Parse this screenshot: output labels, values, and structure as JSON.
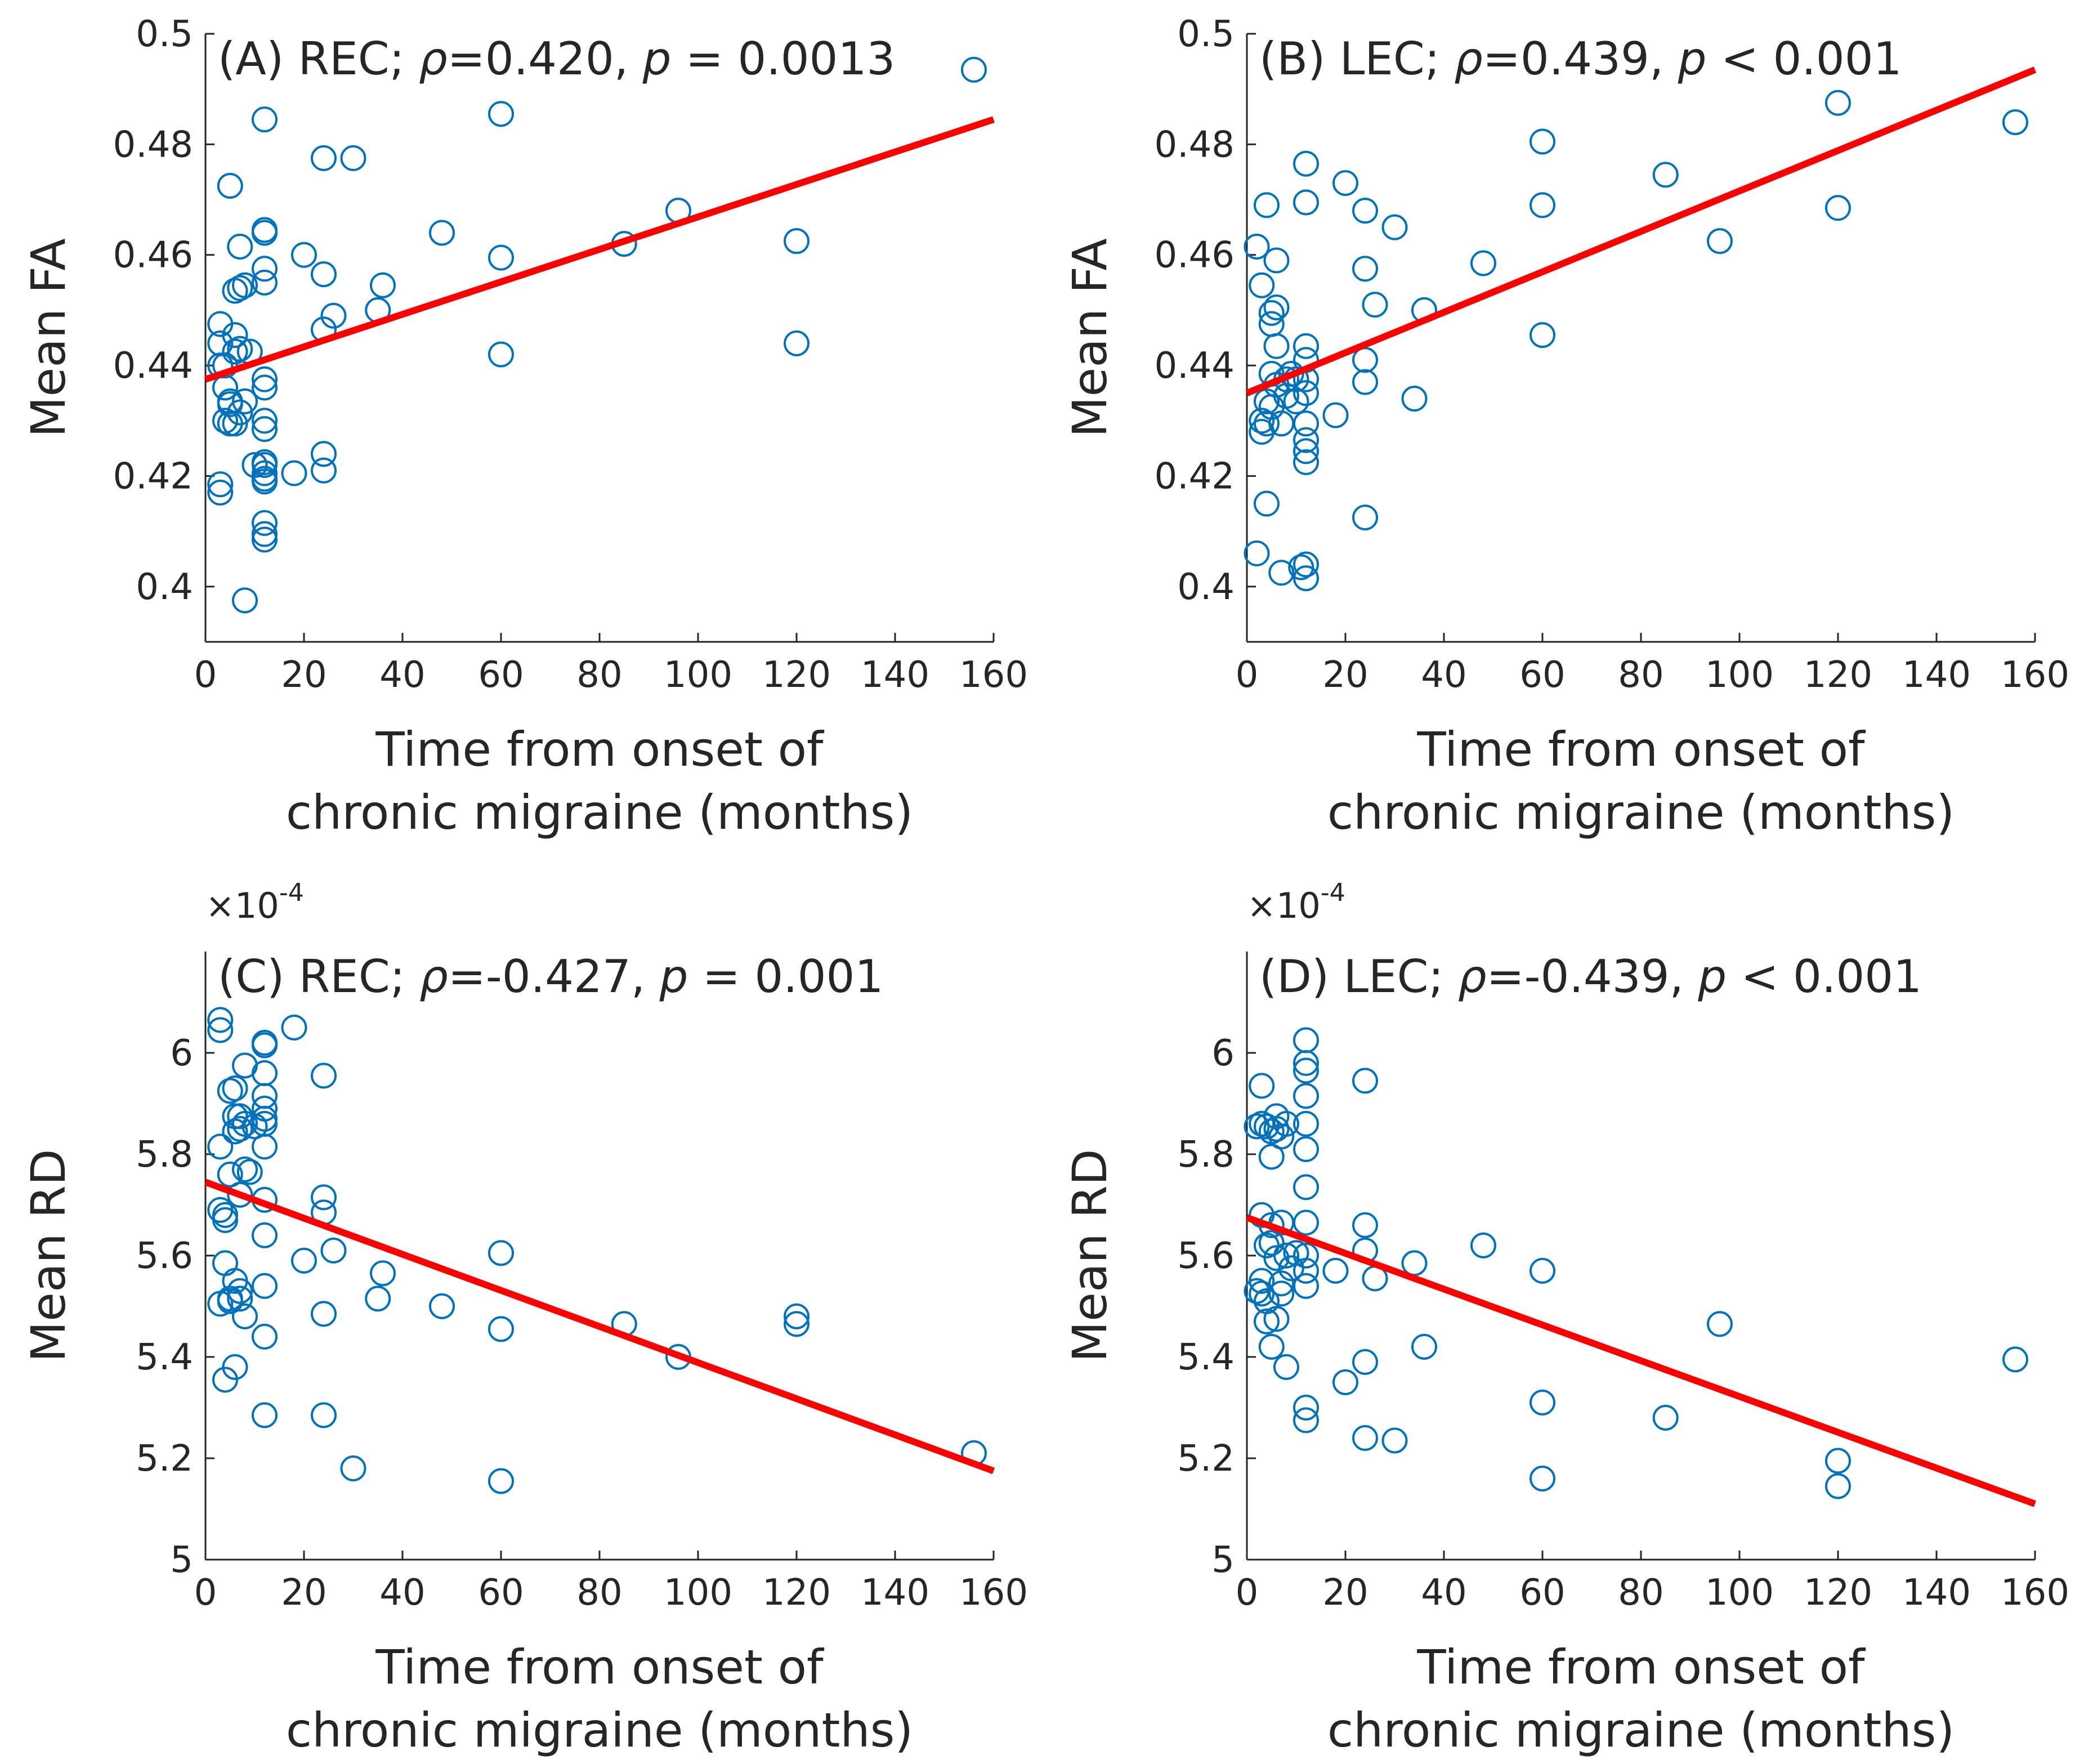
{
  "chart_data": [
    {
      "type": "scatter",
      "panel": "A",
      "title_parts": {
        "prefix": "(A) REC; ",
        "rho_symbol": "ρ",
        "rho_text": "=0.420, ",
        "p_symbol": "p",
        "p_text": " = 0.0013"
      },
      "xlabel": [
        "Time from onset of",
        "chronic migraine (months)"
      ],
      "ylabel": "Mean FA",
      "xlim": [
        0,
        160
      ],
      "ylim": [
        0.39,
        0.5
      ],
      "xticks": [
        0,
        20,
        40,
        60,
        80,
        100,
        120,
        140,
        160
      ],
      "yticks": [
        0.4,
        0.42,
        0.44,
        0.46,
        0.48,
        0.5
      ],
      "ytick_labels": [
        "0.4",
        "0.42",
        "0.44",
        "0.46",
        "0.48",
        "0.5"
      ],
      "exponent_label": "",
      "fit_line": {
        "x": [
          0,
          160
        ],
        "y": [
          0.4375,
          0.4845
        ]
      },
      "x": [
        3,
        3,
        3,
        3,
        3,
        4,
        4,
        4,
        5,
        5,
        5,
        5,
        6,
        6,
        6,
        6,
        7,
        7,
        7,
        7,
        8,
        8,
        8,
        9,
        10,
        12,
        12,
        12,
        12,
        12,
        12,
        12,
        12,
        12,
        12,
        12,
        12,
        12,
        12,
        12,
        12,
        12,
        18,
        20,
        24,
        24,
        24,
        24,
        24,
        26,
        30,
        35,
        36,
        48,
        60,
        60,
        60,
        85,
        96,
        120,
        120,
        156
      ],
      "y": [
        0.4475,
        0.444,
        0.44,
        0.4185,
        0.417,
        0.44,
        0.436,
        0.43,
        0.4725,
        0.4335,
        0.4295,
        0.433,
        0.4535,
        0.4455,
        0.4425,
        0.4295,
        0.4615,
        0.454,
        0.443,
        0.4315,
        0.4545,
        0.4335,
        0.3975,
        0.4425,
        0.422,
        0.4845,
        0.4645,
        0.464,
        0.4575,
        0.455,
        0.4375,
        0.436,
        0.43,
        0.4285,
        0.4225,
        0.419,
        0.4115,
        0.4095,
        0.4085,
        0.4205,
        0.4195,
        0.422,
        0.4205,
        0.46,
        0.4775,
        0.4565,
        0.4465,
        0.424,
        0.421,
        0.449,
        0.4775,
        0.45,
        0.4545,
        0.464,
        0.4855,
        0.4595,
        0.442,
        0.462,
        0.468,
        0.4625,
        0.444,
        0.4935
      ]
    },
    {
      "type": "scatter",
      "panel": "B",
      "title_parts": {
        "prefix": "(B) LEC; ",
        "rho_symbol": "ρ",
        "rho_text": "=0.439, ",
        "p_symbol": "p",
        "p_text": " < 0.001"
      },
      "xlabel": [
        "Time from onset of",
        "chronic migraine (months)"
      ],
      "ylabel": "Mean FA",
      "xlim": [
        0,
        160
      ],
      "ylim": [
        0.39,
        0.5
      ],
      "xticks": [
        0,
        20,
        40,
        60,
        80,
        100,
        120,
        140,
        160
      ],
      "yticks": [
        0.4,
        0.42,
        0.44,
        0.46,
        0.48,
        0.5
      ],
      "ytick_labels": [
        "0.4",
        "0.42",
        "0.44",
        "0.46",
        "0.48",
        "0.5"
      ],
      "exponent_label": "",
      "fit_line": {
        "x": [
          0,
          160
        ],
        "y": [
          0.435,
          0.4935
        ]
      },
      "x": [
        2,
        2,
        3,
        3,
        3,
        4,
        4,
        4,
        4,
        5,
        5,
        5,
        5,
        6,
        6,
        6,
        6,
        7,
        7,
        8,
        8,
        9,
        10,
        10,
        11,
        12,
        12,
        12,
        12,
        12,
        12,
        12,
        12,
        12,
        12,
        12,
        12,
        18,
        20,
        24,
        24,
        24,
        24,
        24,
        26,
        30,
        34,
        36,
        48,
        60,
        60,
        60,
        85,
        96,
        120,
        120,
        156
      ],
      "y": [
        0.4615,
        0.406,
        0.4545,
        0.43,
        0.428,
        0.469,
        0.4335,
        0.4295,
        0.415,
        0.4495,
        0.4475,
        0.4385,
        0.4325,
        0.459,
        0.4505,
        0.4435,
        0.4365,
        0.4295,
        0.4025,
        0.4375,
        0.4345,
        0.4385,
        0.4375,
        0.4335,
        0.4035,
        0.4765,
        0.4695,
        0.4435,
        0.441,
        0.4375,
        0.435,
        0.4295,
        0.4265,
        0.4245,
        0.4225,
        0.404,
        0.4015,
        0.431,
        0.473,
        0.468,
        0.4575,
        0.441,
        0.437,
        0.4125,
        0.451,
        0.465,
        0.434,
        0.45,
        0.4585,
        0.4805,
        0.469,
        0.4455,
        0.4745,
        0.4625,
        0.4875,
        0.4685,
        0.484
      ]
    },
    {
      "type": "scatter",
      "panel": "C",
      "title_parts": {
        "prefix": "(C) REC; ",
        "rho_symbol": "ρ",
        "rho_text": "=-0.427, ",
        "p_symbol": "p",
        "p_text": " = 0.001"
      },
      "xlabel": [
        "Time from onset of",
        "chronic migraine (months)"
      ],
      "ylabel": "Mean RD",
      "xlim": [
        0,
        160
      ],
      "ylim": [
        5.0,
        6.2
      ],
      "xticks": [
        0,
        20,
        40,
        60,
        80,
        100,
        120,
        140,
        160
      ],
      "yticks": [
        5.0,
        5.2,
        5.4,
        5.6,
        5.8,
        6.0
      ],
      "ytick_labels": [
        "5",
        "5.2",
        "5.4",
        "5.6",
        "5.8",
        "6"
      ],
      "exponent_label": "×10",
      "exponent_power": "-4",
      "fit_line": {
        "x": [
          0,
          160
        ],
        "y": [
          5.745,
          5.175
        ]
      },
      "x": [
        3,
        3,
        3,
        3,
        3,
        4,
        4,
        4,
        4,
        5,
        5,
        5,
        5,
        6,
        6,
        6,
        6,
        6,
        7,
        7,
        7,
        7,
        7,
        8,
        8,
        8,
        8,
        9,
        10,
        12,
        12,
        12,
        12,
        12,
        12,
        12,
        12,
        12,
        12,
        12,
        12,
        12,
        18,
        20,
        24,
        24,
        24,
        24,
        24,
        26,
        30,
        35,
        36,
        48,
        60,
        60,
        60,
        85,
        96,
        120,
        120,
        156
      ],
      "y": [
        6.065,
        6.045,
        5.815,
        5.69,
        5.505,
        5.67,
        5.585,
        5.355,
        5.68,
        5.925,
        5.51,
        5.515,
        5.76,
        5.93,
        5.875,
        5.845,
        5.55,
        5.38,
        5.875,
        5.85,
        5.53,
        5.515,
        5.72,
        5.975,
        5.86,
        5.77,
        5.48,
        5.765,
        5.855,
        6.02,
        6.015,
        5.96,
        5.915,
        5.89,
        5.86,
        5.815,
        5.71,
        5.64,
        5.54,
        5.44,
        5.285,
        5.87,
        6.05,
        5.59,
        5.955,
        5.715,
        5.685,
        5.485,
        5.285,
        5.61,
        5.18,
        5.515,
        5.565,
        5.5,
        5.605,
        5.455,
        5.155,
        5.465,
        5.4,
        5.48,
        5.465,
        5.21
      ]
    },
    {
      "type": "scatter",
      "panel": "D",
      "title_parts": {
        "prefix": "(D) LEC; ",
        "rho_symbol": "ρ",
        "rho_text": "=-0.439, ",
        "p_symbol": "p",
        "p_text": " < 0.001"
      },
      "xlabel": [
        "Time from onset of",
        "chronic migraine (months)"
      ],
      "ylabel": "Mean RD",
      "xlim": [
        0,
        160
      ],
      "ylim": [
        5.0,
        6.2
      ],
      "xticks": [
        0,
        20,
        40,
        60,
        80,
        100,
        120,
        140,
        160
      ],
      "yticks": [
        5.0,
        5.2,
        5.4,
        5.6,
        5.8,
        6.0
      ],
      "ytick_labels": [
        "5",
        "5.2",
        "5.4",
        "5.6",
        "5.8",
        "6"
      ],
      "exponent_label": "×10",
      "exponent_power": "-4",
      "fit_line": {
        "x": [
          0,
          160
        ],
        "y": [
          5.675,
          5.11
        ]
      },
      "x": [
        2,
        2,
        3,
        3,
        3,
        3,
        3,
        4,
        4,
        4,
        4,
        5,
        5,
        5,
        5,
        5,
        6,
        6,
        6,
        6,
        7,
        7,
        7,
        7,
        8,
        8,
        8,
        9,
        10,
        12,
        12,
        12,
        12,
        12,
        12,
        12,
        12,
        12,
        12,
        12,
        12,
        12,
        18,
        20,
        24,
        24,
        24,
        24,
        24,
        26,
        30,
        34,
        36,
        48,
        60,
        60,
        60,
        85,
        96,
        120,
        120,
        156
      ],
      "y": [
        5.855,
        5.53,
        5.935,
        5.86,
        5.68,
        5.55,
        5.525,
        5.855,
        5.62,
        5.51,
        5.47,
        5.845,
        5.795,
        5.66,
        5.625,
        5.42,
        5.875,
        5.85,
        5.595,
        5.475,
        5.835,
        5.525,
        5.665,
        5.545,
        5.86,
        5.6,
        5.38,
        5.575,
        5.605,
        6.025,
        5.98,
        5.965,
        5.915,
        5.86,
        5.81,
        5.735,
        5.665,
        5.6,
        5.54,
        5.3,
        5.275,
        5.57,
        5.57,
        5.35,
        5.945,
        5.66,
        5.61,
        5.39,
        5.24,
        5.555,
        5.235,
        5.585,
        5.42,
        5.62,
        5.57,
        5.31,
        5.16,
        5.28,
        5.465,
        5.195,
        5.145,
        5.395
      ]
    }
  ],
  "colors": {
    "marker": "#0072BD",
    "fit_line": "#FF0000",
    "axis": "#262626"
  }
}
